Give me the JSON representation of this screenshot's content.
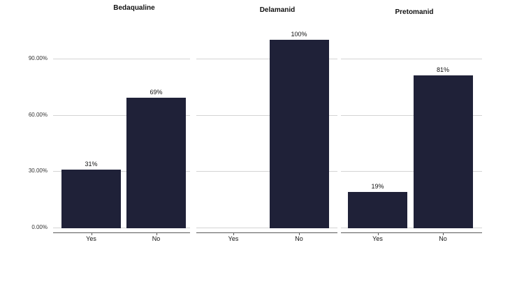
{
  "chart_data": {
    "type": "bar",
    "title": "",
    "facets": [
      {
        "title": "Bedaqualine",
        "categories": [
          "Yes",
          "No"
        ],
        "values": [
          31,
          69
        ],
        "bar_labels": [
          "31%",
          "69%"
        ]
      },
      {
        "title": "Delamanid",
        "categories": [
          "Yes",
          "No"
        ],
        "values": [
          0,
          100
        ],
        "bar_labels": [
          "",
          "100%"
        ]
      },
      {
        "title": "Pretomanid",
        "categories": [
          "Yes",
          "No"
        ],
        "values": [
          19,
          81
        ],
        "bar_labels": [
          "19%",
          "81%"
        ]
      }
    ],
    "y_axis": {
      "tick_labels": [
        "0.00%",
        "30.00%",
        "60.00%",
        "90.00%"
      ],
      "tick_values": [
        0,
        30,
        60,
        90
      ],
      "range": [
        0,
        100
      ]
    },
    "legend_position": "none",
    "grid": "horizontal",
    "colors": {
      "bar": "#1f2138",
      "gridline": "#d4d4d4",
      "axis_line": "#595959",
      "text": "#111111"
    }
  }
}
